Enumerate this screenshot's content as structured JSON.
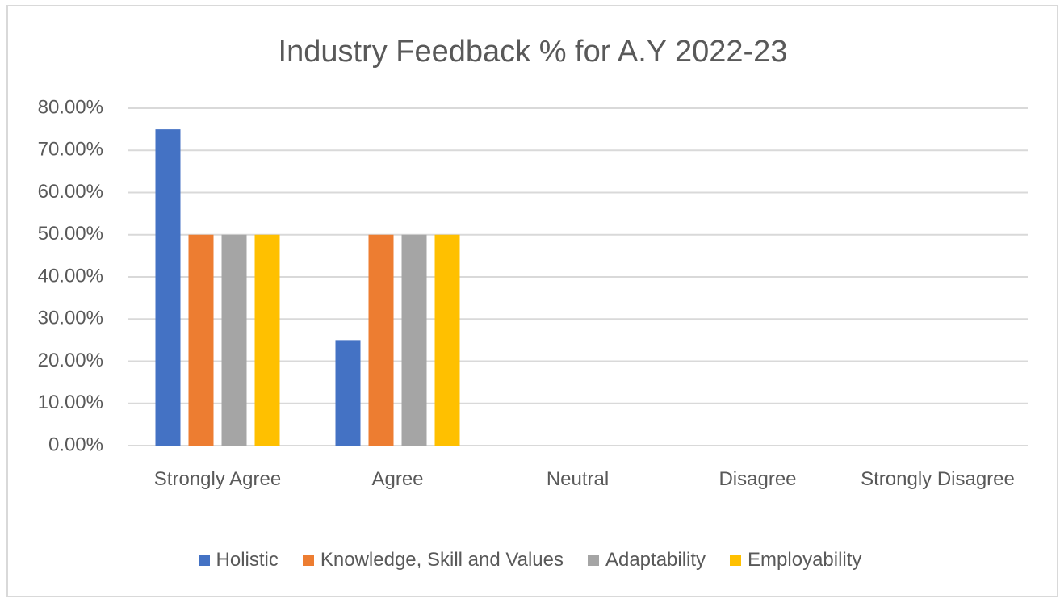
{
  "chart_data": {
    "type": "bar",
    "title": "Industry Feedback % for A.Y 2022-23",
    "categories": [
      "Strongly Agree",
      "Agree",
      "Neutral",
      "Disagree",
      "Strongly Disagree"
    ],
    "series": [
      {
        "name": "Holistic",
        "color": "#4472c4",
        "values": [
          75,
          25,
          0,
          0,
          0
        ]
      },
      {
        "name": "Knowledge, Skill and Values",
        "color": "#ed7d31",
        "values": [
          50,
          50,
          0,
          0,
          0
        ]
      },
      {
        "name": "Adaptability",
        "color": "#a5a5a5",
        "values": [
          50,
          50,
          0,
          0,
          0
        ]
      },
      {
        "name": "Employability",
        "color": "#ffc000",
        "values": [
          50,
          50,
          0,
          0,
          0
        ]
      }
    ],
    "ylim": [
      0,
      80
    ],
    "yticks": [
      {
        "value": 0,
        "label": "0.00%"
      },
      {
        "value": 10,
        "label": "10.00%"
      },
      {
        "value": 20,
        "label": "20.00%"
      },
      {
        "value": 30,
        "label": "30.00%"
      },
      {
        "value": 40,
        "label": "40.00%"
      },
      {
        "value": 50,
        "label": "50.00%"
      },
      {
        "value": 60,
        "label": "60.00%"
      },
      {
        "value": 70,
        "label": "70.00%"
      },
      {
        "value": 80,
        "label": "80.00%"
      }
    ],
    "grid": true,
    "legend": "bottom"
  }
}
